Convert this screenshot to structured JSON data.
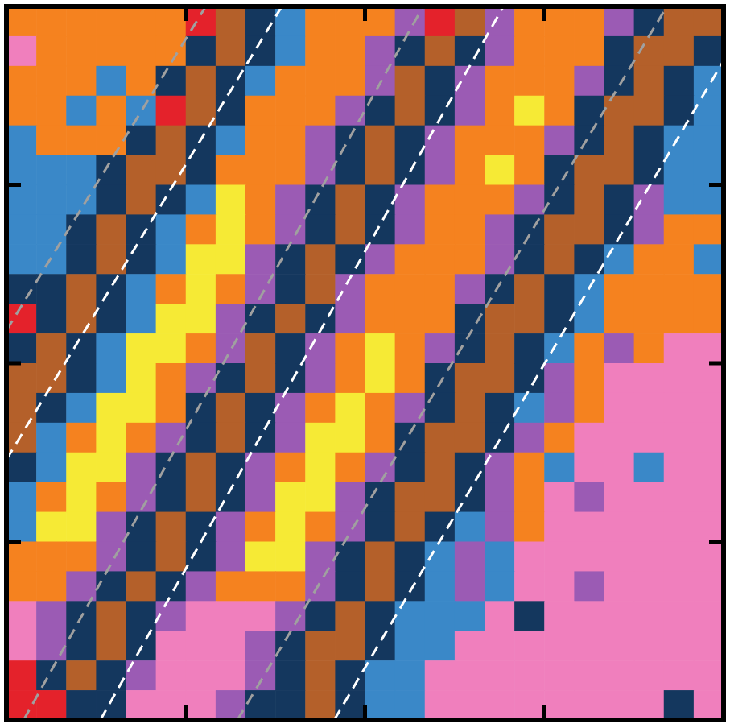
{
  "chart_data": {
    "type": "heatmap",
    "xlim": [
      0,
      1
    ],
    "ylim": [
      0,
      1
    ],
    "xticks": [
      0,
      0.25,
      0.5,
      0.75,
      1
    ],
    "yticks": [
      0,
      0.25,
      0.5,
      0.75,
      1
    ],
    "tick_labels": false,
    "grid": false,
    "colors": [
      "#f07fbd",
      "#f5821f",
      "#3a88c8",
      "#14375e",
      "#b4602a",
      "#9b5bb4",
      "#f6ea35",
      "#e4222b"
    ],
    "cells": [
      [
        1,
        1,
        1,
        1,
        1,
        1,
        7,
        4,
        3,
        2,
        1,
        1,
        1,
        5,
        7,
        4,
        5,
        1,
        1,
        1,
        5,
        3,
        4,
        4
      ],
      [
        0,
        1,
        1,
        1,
        1,
        1,
        3,
        4,
        3,
        2,
        1,
        1,
        5,
        3,
        4,
        3,
        5,
        1,
        1,
        1,
        3,
        4,
        4,
        3
      ],
      [
        1,
        1,
        1,
        2,
        1,
        3,
        4,
        3,
        2,
        1,
        1,
        1,
        5,
        4,
        3,
        5,
        1,
        1,
        1,
        5,
        3,
        4,
        3,
        2
      ],
      [
        1,
        1,
        2,
        1,
        2,
        7,
        4,
        3,
        1,
        1,
        1,
        5,
        3,
        4,
        3,
        5,
        1,
        6,
        1,
        3,
        4,
        4,
        3,
        2
      ],
      [
        2,
        1,
        1,
        1,
        3,
        4,
        3,
        2,
        1,
        1,
        5,
        3,
        4,
        3,
        5,
        1,
        1,
        1,
        5,
        3,
        4,
        3,
        2,
        2
      ],
      [
        2,
        2,
        2,
        3,
        4,
        4,
        3,
        1,
        1,
        1,
        5,
        3,
        4,
        3,
        5,
        1,
        6,
        1,
        3,
        4,
        4,
        3,
        2,
        2
      ],
      [
        2,
        2,
        2,
        3,
        4,
        3,
        2,
        6,
        1,
        5,
        3,
        4,
        3,
        5,
        1,
        1,
        1,
        5,
        3,
        4,
        3,
        5,
        2,
        2
      ],
      [
        2,
        2,
        3,
        4,
        3,
        2,
        1,
        6,
        1,
        5,
        3,
        4,
        3,
        5,
        1,
        1,
        5,
        3,
        4,
        4,
        3,
        5,
        1,
        1
      ],
      [
        2,
        2,
        3,
        4,
        3,
        2,
        6,
        6,
        5,
        3,
        4,
        3,
        5,
        1,
        1,
        1,
        5,
        3,
        4,
        3,
        2,
        1,
        1,
        2
      ],
      [
        3,
        3,
        4,
        3,
        2,
        1,
        6,
        1,
        5,
        3,
        4,
        5,
        1,
        1,
        1,
        5,
        3,
        4,
        3,
        2,
        1,
        1,
        1,
        1
      ],
      [
        7,
        3,
        4,
        3,
        2,
        6,
        6,
        5,
        3,
        4,
        3,
        5,
        1,
        1,
        1,
        3,
        4,
        4,
        3,
        2,
        1,
        1,
        1,
        1
      ],
      [
        3,
        4,
        3,
        2,
        6,
        6,
        1,
        5,
        4,
        3,
        5,
        1,
        6,
        1,
        5,
        3,
        4,
        3,
        2,
        1,
        5,
        1,
        0,
        0
      ],
      [
        4,
        4,
        3,
        2,
        6,
        1,
        5,
        3,
        4,
        3,
        5,
        1,
        6,
        1,
        3,
        4,
        4,
        3,
        5,
        1,
        0,
        0,
        0,
        0
      ],
      [
        4,
        3,
        2,
        6,
        6,
        1,
        3,
        4,
        3,
        5,
        1,
        6,
        1,
        5,
        3,
        4,
        3,
        2,
        5,
        1,
        0,
        0,
        0,
        0
      ],
      [
        4,
        2,
        1,
        6,
        1,
        5,
        3,
        4,
        3,
        5,
        6,
        6,
        1,
        3,
        4,
        4,
        3,
        5,
        1,
        0,
        0,
        0,
        0,
        0
      ],
      [
        3,
        2,
        6,
        6,
        5,
        3,
        4,
        3,
        5,
        1,
        6,
        1,
        5,
        3,
        4,
        3,
        5,
        1,
        2,
        0,
        0,
        2,
        0,
        0
      ],
      [
        2,
        1,
        6,
        1,
        5,
        3,
        4,
        3,
        5,
        6,
        6,
        5,
        3,
        4,
        4,
        3,
        5,
        1,
        0,
        5,
        0,
        0,
        0,
        0
      ],
      [
        2,
        6,
        6,
        5,
        3,
        4,
        3,
        5,
        1,
        6,
        1,
        5,
        3,
        4,
        3,
        2,
        5,
        1,
        0,
        0,
        0,
        0,
        0,
        0
      ],
      [
        1,
        1,
        1,
        5,
        3,
        4,
        3,
        5,
        6,
        6,
        5,
        3,
        4,
        3,
        2,
        5,
        2,
        0,
        0,
        0,
        0,
        0,
        0,
        0
      ],
      [
        1,
        1,
        5,
        3,
        4,
        3,
        5,
        1,
        1,
        1,
        5,
        3,
        4,
        3,
        2,
        5,
        2,
        0,
        0,
        5,
        0,
        0,
        0,
        0
      ],
      [
        0,
        5,
        3,
        4,
        3,
        5,
        0,
        0,
        0,
        5,
        3,
        4,
        3,
        2,
        2,
        2,
        0,
        3,
        0,
        0,
        0,
        0,
        0,
        0
      ],
      [
        0,
        5,
        3,
        4,
        3,
        0,
        0,
        0,
        5,
        3,
        4,
        4,
        3,
        2,
        2,
        0,
        0,
        0,
        0,
        0,
        0,
        0,
        0,
        0
      ],
      [
        7,
        3,
        4,
        3,
        5,
        0,
        0,
        0,
        5,
        3,
        4,
        3,
        2,
        2,
        0,
        0,
        0,
        0,
        0,
        0,
        0,
        0,
        0,
        0
      ],
      [
        7,
        7,
        3,
        3,
        0,
        0,
        0,
        5,
        3,
        3,
        4,
        3,
        2,
        2,
        0,
        0,
        0,
        0,
        0,
        0,
        0,
        0,
        3,
        0
      ]
    ],
    "lines": [
      {
        "x": [
          0,
          0.384
        ],
        "y": [
          0.365,
          1
        ],
        "color": "#ffffff",
        "line_style": "dashed"
      },
      {
        "x": [
          0.131,
          0.693
        ],
        "y": [
          0,
          1
        ],
        "color": "#ffffff",
        "line_style": "dashed"
      },
      {
        "x": [
          0.457,
          1
        ],
        "y": [
          0,
          0.924
        ],
        "color": "#ffffff",
        "line_style": "dashed"
      },
      {
        "x": [
          0,
          0.278
        ],
        "y": [
          0.546,
          1
        ],
        "color": "#a0a0a0",
        "line_style": "dashed"
      },
      {
        "x": [
          0.024,
          0.581
        ],
        "y": [
          0,
          1
        ],
        "color": "#a0a0a0",
        "line_style": "dashed"
      },
      {
        "x": [
          0.322,
          0.921
        ],
        "y": [
          0,
          1
        ],
        "color": "#a0a0a0",
        "line_style": "dashed"
      }
    ]
  }
}
